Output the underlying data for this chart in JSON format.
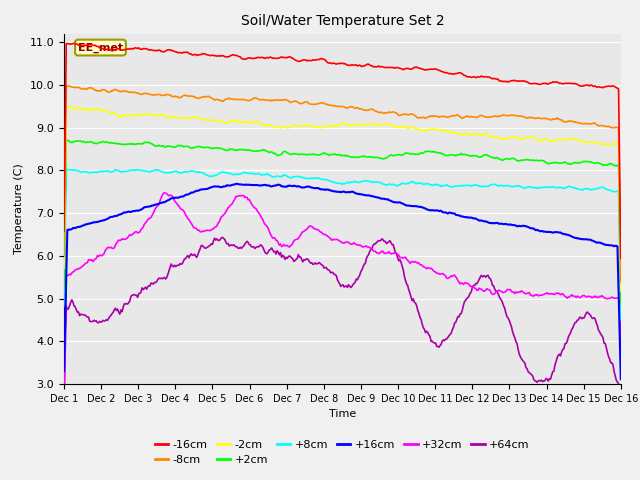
{
  "title": "Soil/Water Temperature Set 2",
  "xlabel": "Time",
  "ylabel": "Temperature (C)",
  "ylim": [
    3.0,
    11.2
  ],
  "xlim": [
    0,
    15
  ],
  "xtick_labels": [
    "Dec 1",
    "Dec 2",
    "Dec 3",
    "Dec 4",
    "Dec 5",
    "Dec 6",
    "Dec 7",
    "Dec 8",
    "Dec 9",
    "Dec 10",
    "Dec 11",
    "Dec 12",
    "Dec 13",
    "Dec 14",
    "Dec 15",
    "Dec 16"
  ],
  "ytick_values": [
    3.0,
    4.0,
    5.0,
    6.0,
    7.0,
    8.0,
    9.0,
    10.0,
    11.0
  ],
  "annotation_text": "EE_met",
  "fig_bg": "#f0f0f0",
  "ax_bg": "#e8e8e8",
  "series_names": [
    "-16cm",
    "-8cm",
    "-2cm",
    "+2cm",
    "+8cm",
    "+16cm",
    "+32cm",
    "+64cm"
  ],
  "series_colors": [
    "#ff0000",
    "#ff8800",
    "#ffff00",
    "#00ff00",
    "#00ffff",
    "#0000ff",
    "#ff00ff",
    "#aa00aa"
  ],
  "legend_row1": [
    "-16cm",
    "-8cm",
    "-2cm",
    "+2cm",
    "+8cm",
    "+16cm"
  ],
  "legend_row2": [
    "+32cm",
    "+64cm"
  ]
}
